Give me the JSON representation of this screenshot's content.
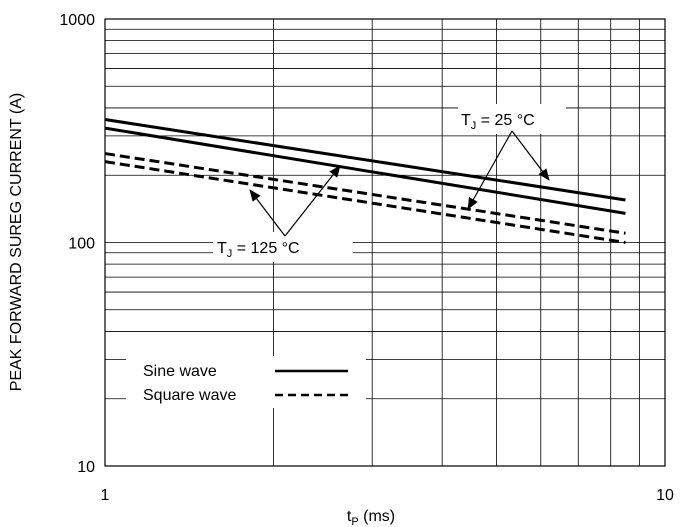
{
  "chart_data": {
    "type": "line",
    "xlabel_main": "t",
    "xlabel_sub": "P",
    "xlabel_unit": " (ms)",
    "ylabel": "PEAK FORWARD SUREG CURRENT (A)",
    "xscale": "log",
    "yscale": "log",
    "xlim": [
      1,
      10
    ],
    "ylim": [
      10,
      1000
    ],
    "x_ticks": [
      {
        "value": 1,
        "label": "1"
      },
      {
        "value": 10,
        "label": "10"
      }
    ],
    "y_ticks": [
      {
        "value": 10,
        "label": "10"
      },
      {
        "value": 100,
        "label": "100"
      },
      {
        "value": 1000,
        "label": "1000"
      }
    ],
    "grid": true,
    "legend_position": "bottom-left",
    "legend": [
      {
        "label": "Sine wave",
        "style": "solid"
      },
      {
        "label": "Square wave",
        "style": "dashed"
      }
    ],
    "series": [
      {
        "style": "solid",
        "points": [
          [
            1,
            355
          ],
          [
            8.5,
            155
          ]
        ]
      },
      {
        "style": "solid",
        "points": [
          [
            1,
            325
          ],
          [
            8.5,
            135
          ]
        ]
      },
      {
        "style": "dashed",
        "points": [
          [
            1,
            250
          ],
          [
            8.5,
            110
          ]
        ]
      },
      {
        "style": "dashed",
        "points": [
          [
            1,
            230
          ],
          [
            8.5,
            100
          ]
        ]
      }
    ],
    "annotations": [
      {
        "main": "T",
        "sub": "J",
        "rest": " = 25 °C"
      },
      {
        "main": "T",
        "sub": "J",
        "rest": " = 125 °C"
      }
    ],
    "colors": {
      "line": "#000000",
      "background": "#ffffff"
    }
  }
}
